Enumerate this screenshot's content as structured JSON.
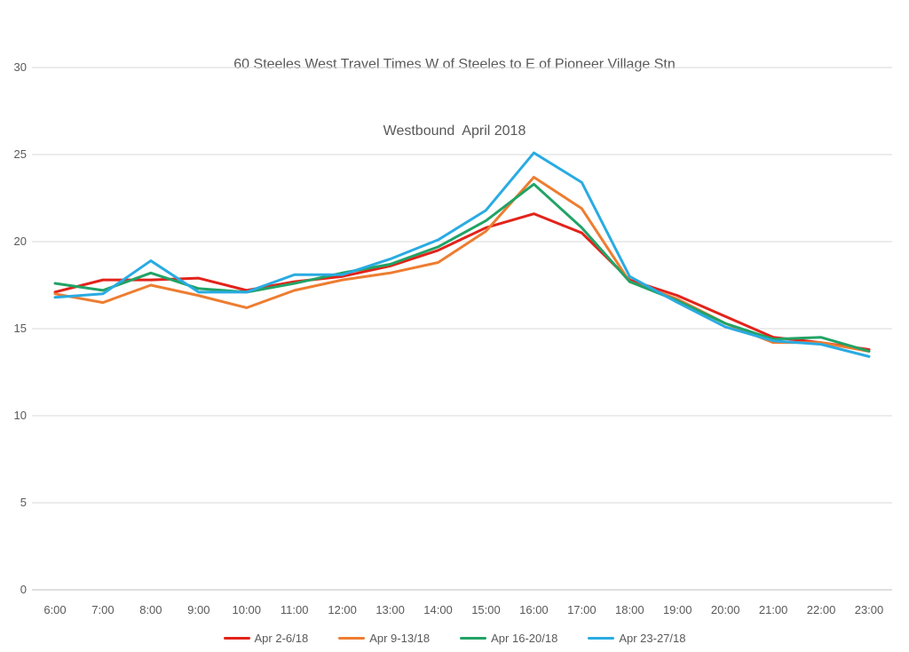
{
  "title": {
    "line1": "60 Steeles West Travel Times W of Steeles to E of Pioneer Village Stn",
    "line2": "Westbound  April 2018"
  },
  "chart_data": {
    "type": "line",
    "title": "60 Steeles West Travel Times W of Steeles to E of Pioneer Village Stn Westbound April 2018",
    "categories": [
      "6:00",
      "7:00",
      "8:00",
      "9:00",
      "10:00",
      "11:00",
      "12:00",
      "13:00",
      "14:00",
      "15:00",
      "16:00",
      "17:00",
      "18:00",
      "19:00",
      "20:00",
      "21:00",
      "22:00",
      "23:00"
    ],
    "series": [
      {
        "name": "Apr 2-6/18",
        "color": "#E2231A",
        "values": [
          17.1,
          17.8,
          17.8,
          17.9,
          17.2,
          17.7,
          18.0,
          18.6,
          19.5,
          20.8,
          21.6,
          20.5,
          17.8,
          16.9,
          15.7,
          14.5,
          14.2,
          13.8
        ]
      },
      {
        "name": "Apr 9-13/18",
        "color": "#ED7D31",
        "values": [
          17.0,
          16.5,
          17.5,
          16.9,
          16.2,
          17.2,
          17.8,
          18.2,
          18.8,
          20.6,
          23.7,
          21.9,
          17.7,
          16.7,
          15.3,
          14.2,
          14.2,
          13.7
        ]
      },
      {
        "name": "Apr 16-20/18",
        "color": "#21A366",
        "values": [
          17.6,
          17.2,
          18.2,
          17.3,
          17.1,
          17.6,
          18.2,
          18.7,
          19.7,
          21.2,
          23.3,
          20.8,
          17.7,
          16.6,
          15.3,
          14.4,
          14.5,
          13.7
        ]
      },
      {
        "name": "Apr 23-27/18",
        "color": "#29ABE2",
        "values": [
          16.8,
          17.0,
          18.9,
          17.1,
          17.1,
          18.1,
          18.1,
          19.0,
          20.1,
          21.8,
          25.1,
          23.4,
          18.0,
          16.5,
          15.1,
          14.3,
          14.1,
          13.4
        ]
      }
    ],
    "ylim": [
      0,
      30
    ],
    "yticks": [
      0,
      5,
      10,
      15,
      20,
      25,
      30
    ],
    "xlabel": "",
    "ylabel": "",
    "grid": "horizontal",
    "legend_position": "bottom"
  },
  "colors": {
    "background": "#FFFFFF",
    "gridline": "#D9D9D9",
    "axis_line": "#BFBFBF",
    "tick_text": "#595959",
    "title_text": "#595959"
  }
}
